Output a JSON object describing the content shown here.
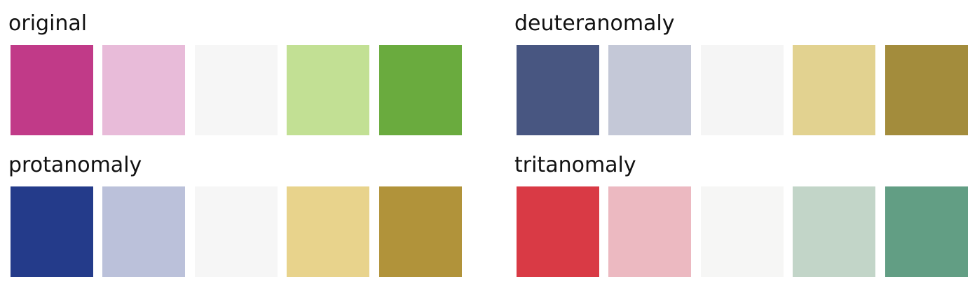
{
  "panels": [
    {
      "title": "original",
      "swatches": [
        "#c13a88",
        "#e8bbd9",
        "#f6f6f6",
        "#c2e094",
        "#6aab3e"
      ]
    },
    {
      "title": "deuteranomaly",
      "swatches": [
        "#485681",
        "#c4c8d7",
        "#f5f5f5",
        "#e2d290",
        "#a38c3c"
      ]
    },
    {
      "title": "protanomaly",
      "swatches": [
        "#243b8a",
        "#bbc1da",
        "#f6f6f6",
        "#e8d38c",
        "#b1933a"
      ]
    },
    {
      "title": "tritanomaly",
      "swatches": [
        "#d93a45",
        "#ecb9c1",
        "#f6f6f5",
        "#c2d5c8",
        "#629e84"
      ]
    }
  ]
}
